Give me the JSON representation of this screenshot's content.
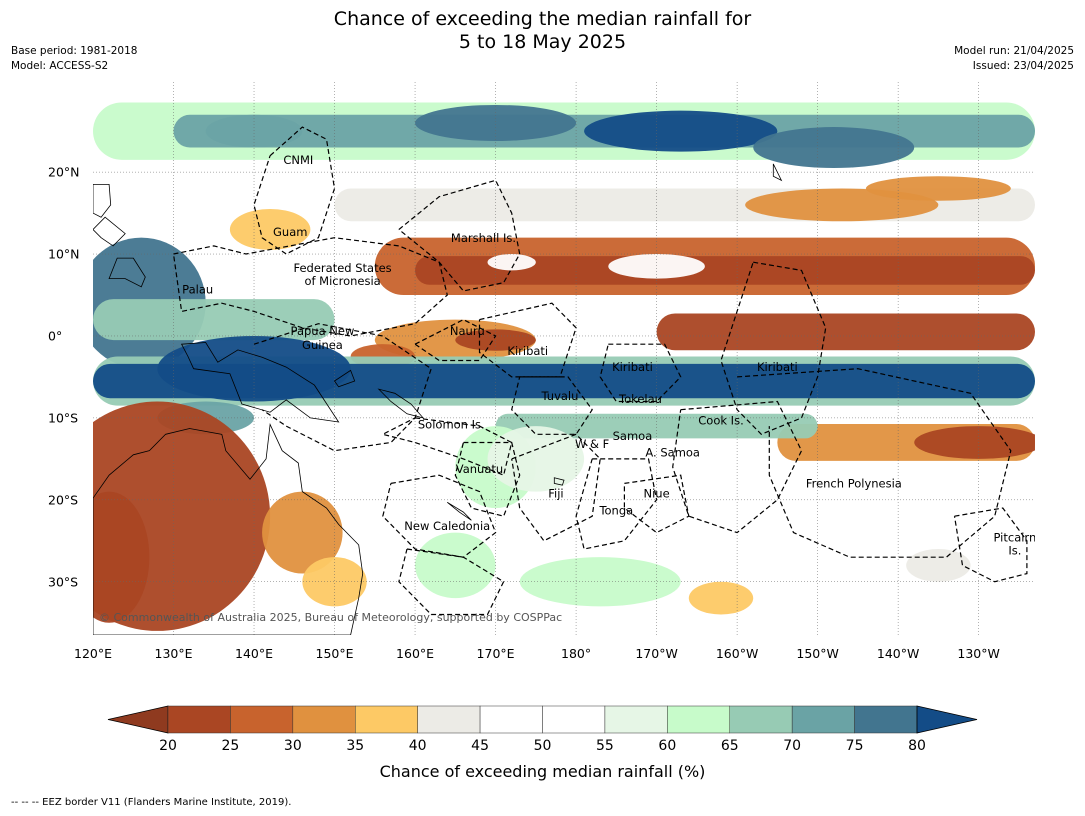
{
  "title_line1": "Chance of exceeding the median rainfall for",
  "title_line2": "5 to 18 May 2025",
  "meta": {
    "base_period": "Base period: 1981-2018",
    "model": "Model: ACCESS-S2",
    "model_run": "Model run: 21/04/2025",
    "issued": "Issued: 23/04/2025"
  },
  "map": {
    "lon_labels": [
      "120°E",
      "130°E",
      "140°E",
      "150°E",
      "160°E",
      "170°E",
      "180°",
      "170°W",
      "160°W",
      "150°W",
      "140°W",
      "130°W"
    ],
    "lat_labels": [
      "20°N",
      "10°N",
      "0°",
      "10°S",
      "20°S",
      "30°S"
    ],
    "lon_range": [
      120,
      237
    ],
    "lat_range": [
      -36.5,
      31
    ],
    "region_labels": [
      {
        "text": "CNMI",
        "lon": 145.5,
        "lat": 21
      },
      {
        "text": "Guam",
        "lon": 144.5,
        "lat": 12.2
      },
      {
        "text": "Marshall Is.",
        "lon": 168.5,
        "lat": 11.5
      },
      {
        "text": "Federated States",
        "lon": 151,
        "lat": 7.8
      },
      {
        "text": "of Micronesia",
        "lon": 151,
        "lat": 6.2
      },
      {
        "text": "Palau",
        "lon": 133,
        "lat": 5.2
      },
      {
        "text": "Papua New",
        "lon": 148.5,
        "lat": 0.1
      },
      {
        "text": "Guinea",
        "lon": 148.5,
        "lat": -1.6
      },
      {
        "text": "Nauru",
        "lon": 166.5,
        "lat": 0.1
      },
      {
        "text": "Kiribati",
        "lon": 174,
        "lat": -2.3
      },
      {
        "text": "Kiribati",
        "lon": 187,
        "lat": -4.3
      },
      {
        "text": "Kiribati",
        "lon": 205,
        "lat": -4.3
      },
      {
        "text": "Tuvalu",
        "lon": 178,
        "lat": -7.8
      },
      {
        "text": "Tokelau",
        "lon": 188,
        "lat": -8.2
      },
      {
        "text": "Solomon Is.",
        "lon": 164.5,
        "lat": -11.3
      },
      {
        "text": "Cook Is.",
        "lon": 198,
        "lat": -10.8
      },
      {
        "text": "Samoa",
        "lon": 187,
        "lat": -12.7
      },
      {
        "text": "W & F",
        "lon": 182,
        "lat": -13.7
      },
      {
        "text": "A. Samoa",
        "lon": 192,
        "lat": -14.7
      },
      {
        "text": "Vanuatu",
        "lon": 168,
        "lat": -16.7
      },
      {
        "text": "French Polynesia",
        "lon": 214.5,
        "lat": -18.5
      },
      {
        "text": "Niue",
        "lon": 190,
        "lat": -19.7
      },
      {
        "text": "Fiji",
        "lon": 177.5,
        "lat": -19.7
      },
      {
        "text": "Tonga",
        "lon": 185,
        "lat": -21.8
      },
      {
        "text": "New Caledonia",
        "lon": 164,
        "lat": -23.7
      },
      {
        "text": "Pitcairn",
        "lon": 234.5,
        "lat": -25.1
      },
      {
        "text": "Is.",
        "lon": 234.5,
        "lat": -26.7
      }
    ],
    "copyright": "© Commonwealth of Australia 2025, Bureau of Meteorology, supported by COSPPac"
  },
  "chart_data": {
    "type": "heatmap",
    "colorbar": {
      "ticks": [
        "20",
        "25",
        "30",
        "35",
        "40",
        "45",
        "50",
        "55",
        "60",
        "65",
        "70",
        "75",
        "80"
      ],
      "colors": [
        "#8f3a1f",
        "#aa4623",
        "#c8632d",
        "#e0913f",
        "#fdc965",
        "#ecebe6",
        "#ffffff",
        "#ffffff",
        "#e6f6e6",
        "#c7fbca",
        "#97cbb4",
        "#6aa3a5",
        "#42758f",
        "#134c87"
      ],
      "label": "Chance of exceeding median rainfall (%)",
      "extend": "both"
    },
    "xlabel": "",
    "ylabel": ""
  },
  "footnote": "--  --  -- EEZ border V11 (Flanders Marine Institute, 2019)."
}
